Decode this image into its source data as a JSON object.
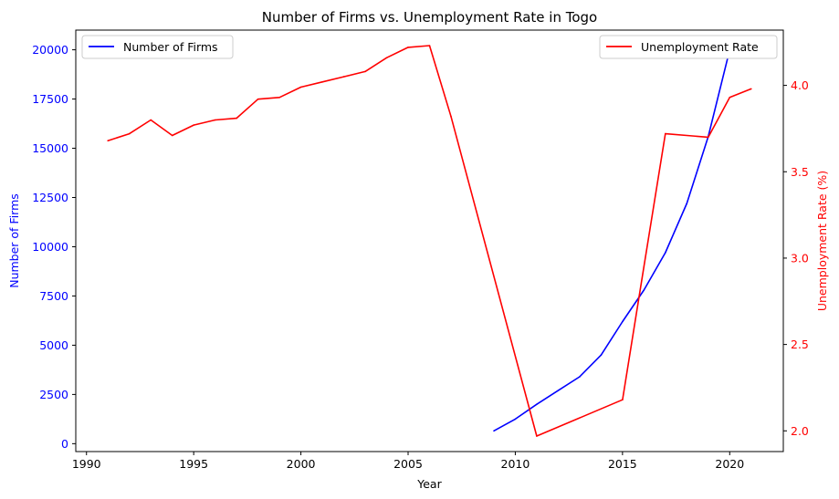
{
  "chart_data": {
    "type": "line",
    "title": "Number of Firms vs. Unemployment Rate in Togo",
    "xlabel": "Year",
    "xlim": [
      1989.5,
      2022.5
    ],
    "xticks": [
      "1990",
      "1995",
      "2000",
      "2005",
      "2010",
      "2015",
      "2020"
    ],
    "grid": false,
    "left_axis": {
      "label": "Number of Firms",
      "color": "#0000ff",
      "ylim": [
        -400,
        21000
      ],
      "ticks": [
        "0",
        "2500",
        "5000",
        "7500",
        "10000",
        "12500",
        "15000",
        "17500",
        "20000"
      ]
    },
    "right_axis": {
      "label": "Unemployment Rate (%)",
      "color": "#ff0000",
      "ylim": [
        1.88,
        4.32
      ],
      "ticks": [
        "2.0",
        "2.5",
        "3.0",
        "3.5",
        "4.0"
      ]
    },
    "series": [
      {
        "name": "Number of Firms",
        "axis": "left",
        "color": "#0000ff",
        "x": [
          2009,
          2010,
          2011,
          2012,
          2013,
          2014,
          2015,
          2016,
          2017,
          2018,
          2019,
          2020
        ],
        "values": [
          650,
          1250,
          2000,
          2700,
          3400,
          4500,
          6200,
          7800,
          9700,
          12200,
          15600,
          20000
        ]
      },
      {
        "name": "Unemployment Rate",
        "axis": "right",
        "color": "#ff0000",
        "x": [
          1991,
          1992,
          1993,
          1994,
          1995,
          1996,
          1997,
          1998,
          1999,
          2000,
          2001,
          2002,
          2003,
          2004,
          2005,
          2006,
          2007,
          2011,
          2015,
          2016,
          2017,
          2019,
          2020,
          2021
        ],
        "values": [
          3.68,
          3.72,
          3.8,
          3.71,
          3.77,
          3.8,
          3.81,
          3.92,
          3.93,
          3.99,
          4.02,
          4.05,
          4.08,
          4.16,
          4.22,
          4.23,
          3.82,
          1.97,
          2.18,
          2.95,
          3.72,
          3.7,
          3.93,
          3.98
        ]
      }
    ],
    "legends": [
      {
        "entries": [
          "Number of Firms"
        ],
        "placement": "upper left"
      },
      {
        "entries": [
          "Unemployment Rate"
        ],
        "placement": "upper right"
      }
    ]
  }
}
